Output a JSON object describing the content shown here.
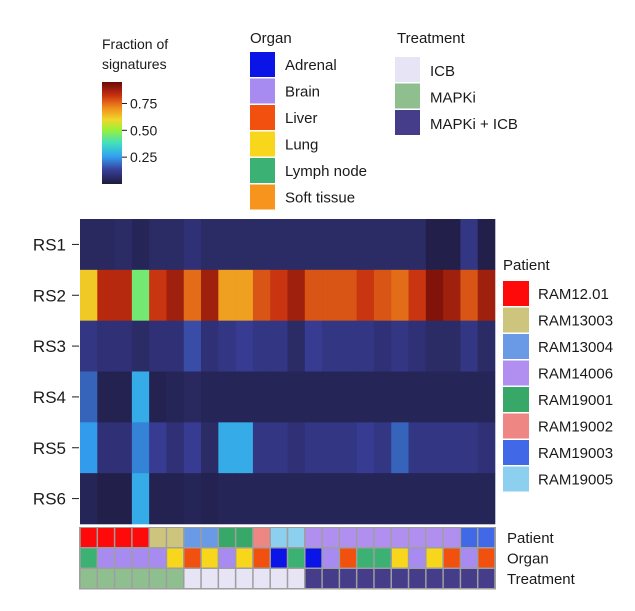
{
  "chart_data": {
    "type": "heatmap",
    "rows": [
      "RS1",
      "RS2",
      "RS3",
      "RS4",
      "RS5",
      "RS6"
    ],
    "n_columns": 24,
    "values": [
      [
        0.05,
        0.05,
        0.06,
        0.04,
        0.06,
        0.06,
        0.08,
        0.06,
        0.06,
        0.06,
        0.06,
        0.06,
        0.06,
        0.06,
        0.06,
        0.06,
        0.06,
        0.06,
        0.06,
        0.06,
        0.02,
        0.02,
        0.1,
        0.02
      ],
      [
        0.62,
        0.85,
        0.85,
        0.45,
        0.82,
        0.88,
        0.75,
        0.88,
        0.68,
        0.68,
        0.78,
        0.82,
        0.88,
        0.78,
        0.78,
        0.78,
        0.82,
        0.78,
        0.75,
        0.82,
        0.92,
        0.88,
        0.78,
        0.88
      ],
      [
        0.1,
        0.08,
        0.08,
        0.06,
        0.08,
        0.08,
        0.15,
        0.08,
        0.1,
        0.12,
        0.1,
        0.1,
        0.06,
        0.12,
        0.1,
        0.1,
        0.1,
        0.08,
        0.1,
        0.08,
        0.06,
        0.06,
        0.1,
        0.06
      ],
      [
        0.18,
        0.03,
        0.03,
        0.28,
        0.03,
        0.04,
        0.05,
        0.04,
        0.04,
        0.04,
        0.04,
        0.04,
        0.04,
        0.04,
        0.04,
        0.04,
        0.04,
        0.04,
        0.04,
        0.04,
        0.04,
        0.04,
        0.04,
        0.04
      ],
      [
        0.25,
        0.08,
        0.08,
        0.22,
        0.12,
        0.08,
        0.12,
        0.06,
        0.28,
        0.28,
        0.1,
        0.1,
        0.08,
        0.1,
        0.1,
        0.1,
        0.12,
        0.1,
        0.18,
        0.1,
        0.1,
        0.1,
        0.1,
        0.08
      ],
      [
        0.04,
        0.02,
        0.02,
        0.28,
        0.03,
        0.03,
        0.04,
        0.03,
        0.04,
        0.04,
        0.04,
        0.04,
        0.04,
        0.04,
        0.04,
        0.04,
        0.04,
        0.04,
        0.04,
        0.04,
        0.04,
        0.04,
        0.04,
        0.04
      ]
    ],
    "colorbar": {
      "title_lines": [
        "Fraction of",
        "signatures"
      ],
      "ticks": [
        0.75,
        0.5,
        0.25
      ],
      "tick_labels": [
        "0.75",
        "0.50",
        "0.25"
      ],
      "range": [
        0,
        0.95
      ]
    },
    "annotation_tracks": [
      {
        "name": "Patient",
        "values": [
          "RAM12.01",
          "RAM12.01",
          "RAM12.01",
          "RAM12.01",
          "RAM13003",
          "RAM13003",
          "RAM13004",
          "RAM13004",
          "RAM19001",
          "RAM19001",
          "RAM19002",
          "RAM19005",
          "RAM19005",
          "RAM14006",
          "RAM14006",
          "RAM14006",
          "RAM14006",
          "RAM14006",
          "RAM14006",
          "RAM14006",
          "RAM14006",
          "RAM14006",
          "RAM19003",
          "RAM19003"
        ]
      },
      {
        "name": "Organ",
        "values": [
          "Lymph node",
          "Brain",
          "Brain",
          "Brain",
          "Brain",
          "Lung",
          "Liver",
          "Lung",
          "Brain",
          "Lung",
          "Liver",
          "Adrenal",
          "Lymph node",
          "Adrenal",
          "Brain",
          "Liver",
          "Lymph node",
          "Lymph node",
          "Lung",
          "Brain",
          "Lung",
          "Liver",
          "Brain",
          "Liver"
        ]
      },
      {
        "name": "Treatment",
        "values": [
          "MAPKi",
          "MAPKi",
          "MAPKi",
          "MAPKi",
          "MAPKi",
          "MAPKi",
          "ICB",
          "ICB",
          "ICB",
          "ICB",
          "ICB",
          "ICB",
          "ICB",
          "MAPKi + ICB",
          "MAPKi + ICB",
          "MAPKi + ICB",
          "MAPKi + ICB",
          "MAPKi + ICB",
          "MAPKi + ICB",
          "MAPKi + ICB",
          "MAPKi + ICB",
          "MAPKi + ICB",
          "MAPKi + ICB",
          "MAPKi + ICB"
        ]
      }
    ],
    "legends": {
      "organ": {
        "title": "Organ",
        "items": [
          {
            "label": "Adrenal",
            "color": "#0a14e6"
          },
          {
            "label": "Brain",
            "color": "#a78bf0"
          },
          {
            "label": "Liver",
            "color": "#f2500f"
          },
          {
            "label": "Lung",
            "color": "#f8d61c"
          },
          {
            "label": "Lymph node",
            "color": "#3bb273"
          },
          {
            "label": "Soft tissue",
            "color": "#f7941d"
          }
        ]
      },
      "treatment": {
        "title": "Treatment",
        "items": [
          {
            "label": "ICB",
            "color": "#e6e4f5"
          },
          {
            "label": "MAPKi",
            "color": "#8fbf8f"
          },
          {
            "label": "MAPKi + ICB",
            "color": "#453d8a"
          }
        ]
      },
      "patient": {
        "title": "Patient",
        "items": [
          {
            "label": "RAM12.01",
            "color": "#ff0a0a"
          },
          {
            "label": "RAM13003",
            "color": "#cdc47d"
          },
          {
            "label": "RAM13004",
            "color": "#6a9ae6"
          },
          {
            "label": "RAM14006",
            "color": "#b08ff0"
          },
          {
            "label": "RAM19001",
            "color": "#38a868"
          },
          {
            "label": "RAM19002",
            "color": "#ee8684"
          },
          {
            "label": "RAM19003",
            "color": "#4168e6"
          },
          {
            "label": "RAM19005",
            "color": "#8ccfee"
          }
        ]
      }
    }
  }
}
